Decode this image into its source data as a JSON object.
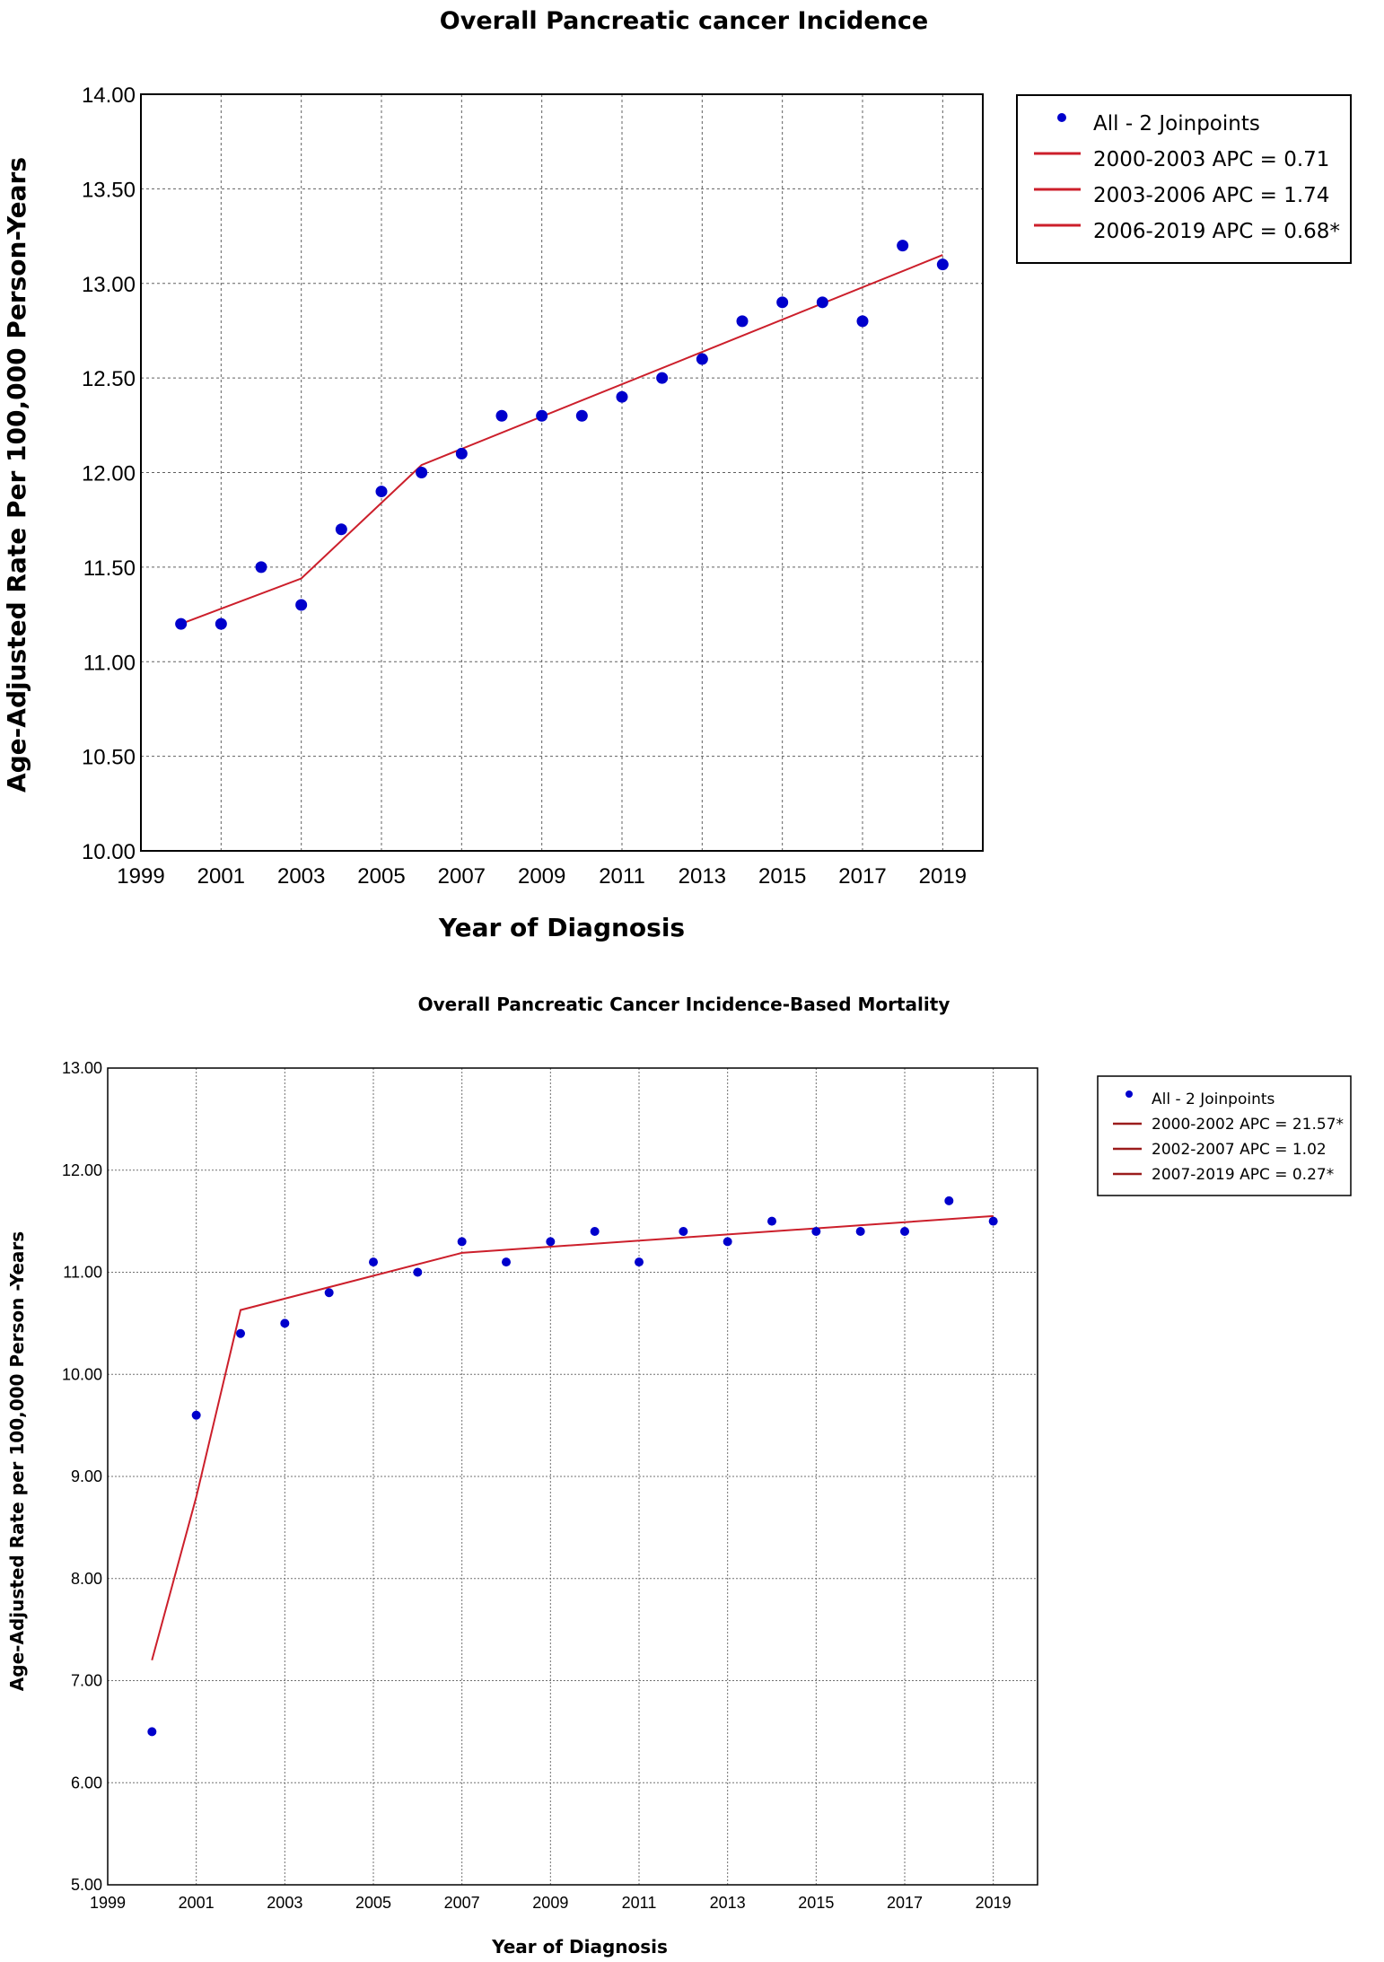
{
  "chart_data": [
    {
      "type": "scatter",
      "title": "Overall Pancreatic cancer Incidence",
      "xlabel": "Year of Diagnosis",
      "ylabel": "Age-Adjusted Rate Per 100,000 Person-Years",
      "xlim": [
        1999,
        2020
      ],
      "ylim": [
        10.0,
        14.0
      ],
      "x_ticks": [
        "1999",
        "2001",
        "2003",
        "2005",
        "2007",
        "2009",
        "2011",
        "2013",
        "2015",
        "2017",
        "2019"
      ],
      "y_ticks": [
        "10.00",
        "10.50",
        "11.00",
        "11.50",
        "12.00",
        "12.50",
        "13.00",
        "13.50",
        "14.00"
      ],
      "grid": true,
      "legend_position": "right",
      "colors": {
        "points": "#0000cc",
        "fit": "#cc1f2b"
      },
      "legend": [
        {
          "label": "All - 2 Joinpoints",
          "kind": "marker"
        },
        {
          "label": "2000-2003 APC  = 0.71",
          "kind": "line"
        },
        {
          "label": "2003-2006 APC  = 1.74",
          "kind": "line"
        },
        {
          "label": "2006-2019 APC  = 0.68*",
          "kind": "line"
        }
      ],
      "series": [
        {
          "name": "All - 2 Joinpoints",
          "x": [
            2000,
            2001,
            2002,
            2003,
            2004,
            2005,
            2006,
            2007,
            2008,
            2009,
            2010,
            2011,
            2012,
            2013,
            2014,
            2015,
            2016,
            2017,
            2018,
            2019
          ],
          "y": [
            11.2,
            11.2,
            11.5,
            11.3,
            11.7,
            11.9,
            12.0,
            12.1,
            12.3,
            12.3,
            12.3,
            12.4,
            12.5,
            12.6,
            12.8,
            12.9,
            12.9,
            12.8,
            13.2,
            13.1
          ]
        }
      ],
      "fit_line": {
        "x": [
          2000,
          2003,
          2006,
          2019
        ],
        "y": [
          11.2,
          11.44,
          12.04,
          13.15
        ]
      }
    },
    {
      "type": "scatter",
      "title": "Overall Pancreatic Cancer Incidence-Based Mortality",
      "xlabel": "Year of Diagnosis",
      "ylabel": "Age-Adjusted Rate per 100,000 Person -Years",
      "xlim": [
        1999,
        2020
      ],
      "ylim": [
        5.0,
        13.0
      ],
      "x_ticks": [
        "1999",
        "2001",
        "2003",
        "2005",
        "2007",
        "2009",
        "2011",
        "2013",
        "2015",
        "2017",
        "2019"
      ],
      "y_ticks": [
        "5.00",
        "6.00",
        "7.00",
        "8.00",
        "9.00",
        "10.00",
        "11.00",
        "12.00",
        "13.00"
      ],
      "grid": true,
      "legend_position": "right",
      "colors": {
        "points": "#0000cc",
        "fit": "#cc1f2b",
        "legend_line": "#9b1c1c"
      },
      "legend": [
        {
          "label": "All - 2 Joinpoints",
          "kind": "marker"
        },
        {
          "label": "2000-2002 APC  = 21.57*",
          "kind": "line"
        },
        {
          "label": "2002-2007 APC  = 1.02",
          "kind": "line"
        },
        {
          "label": "2007-2019 APC  = 0.27*",
          "kind": "line"
        }
      ],
      "series": [
        {
          "name": "All - 2 Joinpoints",
          "x": [
            2000,
            2001,
            2002,
            2003,
            2004,
            2005,
            2006,
            2007,
            2008,
            2009,
            2010,
            2011,
            2012,
            2013,
            2014,
            2015,
            2016,
            2017,
            2018,
            2019
          ],
          "y": [
            6.5,
            9.6,
            10.4,
            10.5,
            10.8,
            11.1,
            11.0,
            11.3,
            11.1,
            11.3,
            11.4,
            11.1,
            11.4,
            11.3,
            11.5,
            11.4,
            11.4,
            11.4,
            11.7,
            11.5
          ]
        }
      ],
      "fit_line": {
        "x": [
          2000,
          2001,
          2002,
          2007,
          2019
        ],
        "y": [
          7.2,
          8.8,
          10.63,
          11.19,
          11.55
        ]
      }
    }
  ]
}
